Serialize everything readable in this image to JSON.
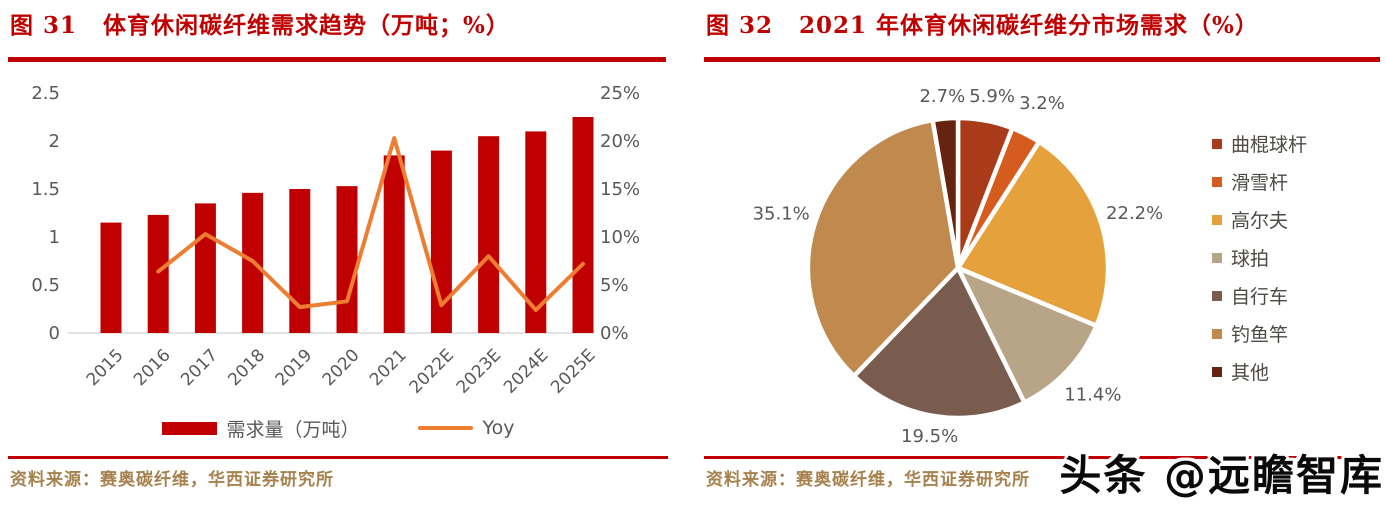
{
  "page": {
    "accent_red": "#C00000",
    "axis_text_color": "#595959",
    "source_text_color": "#A6824E",
    "watermark": "头条 @远瞻智库"
  },
  "figure31": {
    "fig_label": "图 31",
    "title": "体育休闲碳纤维需求趋势（万吨；%）",
    "source": "资料来源：赛奥碳纤维，华西证券研究所"
  },
  "figure32": {
    "fig_label": "图 32",
    "title": "2021 年体育休闲碳纤维分市场需求（%）",
    "source": "资料来源：赛奥碳纤维，华西证券研究所"
  },
  "chart_data": [
    {
      "type": "bar",
      "subtype": "bar-line-combo",
      "title": "体育休闲碳纤维需求趋势（万吨；%）",
      "categories": [
        "2015",
        "2016",
        "2017",
        "2018",
        "2019",
        "2020",
        "2021",
        "2022E",
        "2023E",
        "2024E",
        "2025E"
      ],
      "series": [
        {
          "name": "需求量（万吨）",
          "type": "bar",
          "axis": "left",
          "color": "#C00000",
          "values": [
            1.15,
            1.23,
            1.35,
            1.46,
            1.5,
            1.53,
            1.85,
            1.9,
            2.05,
            2.1,
            2.25
          ]
        },
        {
          "name": "Yoy",
          "type": "line",
          "axis": "right",
          "color": "#ED7D31",
          "values": [
            null,
            6.4,
            10.3,
            7.5,
            2.7,
            3.3,
            20.3,
            2.9,
            8.0,
            2.4,
            7.2
          ]
        }
      ],
      "left_axis": {
        "min": 0,
        "max": 2.5,
        "ticks": [
          "0",
          "0.5",
          "1",
          "1.5",
          "2",
          "2.5"
        ]
      },
      "right_axis": {
        "min": 0,
        "max": 25,
        "ticks": [
          "0%",
          "5%",
          "10%",
          "15%",
          "20%",
          "25%"
        ]
      },
      "grid": false,
      "legend_position": "bottom"
    },
    {
      "type": "pie",
      "title": "2021 年体育休闲碳纤维分市场需求（%）",
      "slices": [
        {
          "label": "曲棍球杆",
          "value": 5.9,
          "color": "#A93B1B"
        },
        {
          "label": "滑雪杆",
          "value": 3.2,
          "color": "#D55B1E"
        },
        {
          "label": "高尔夫",
          "value": 22.2,
          "color": "#E5A23C"
        },
        {
          "label": "球拍",
          "value": 11.4,
          "color": "#B8A486"
        },
        {
          "label": "自行车",
          "value": 19.5,
          "color": "#7A5C4F"
        },
        {
          "label": "钓鱼竿",
          "value": 35.1,
          "color": "#C08A4F"
        },
        {
          "label": "其他",
          "value": 2.7,
          "color": "#66230F"
        }
      ],
      "start_angle_deg": 0,
      "direction": "clockwise",
      "data_labels": "percent-outside",
      "legend_position": "right"
    }
  ]
}
